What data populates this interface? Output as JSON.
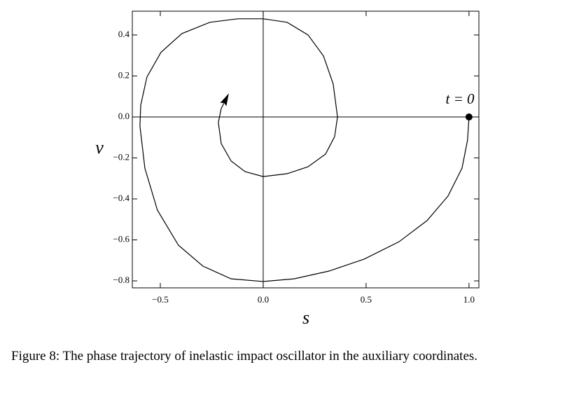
{
  "chart_data": {
    "type": "line",
    "x": [
      1.0,
      0.993,
      0.966,
      0.898,
      0.796,
      0.66,
      0.49,
      0.32,
      0.15,
      0.0,
      -0.156,
      -0.293,
      -0.412,
      -0.514,
      -0.575,
      -0.599,
      -0.595,
      -0.565,
      -0.497,
      -0.395,
      -0.259,
      -0.122,
      0.0,
      0.116,
      0.218,
      0.293,
      0.34,
      0.361,
      0.347,
      0.303,
      0.218,
      0.116,
      0.0,
      -0.088,
      -0.156,
      -0.204,
      -0.218,
      -0.204,
      -0.173
    ],
    "values": [
      0,
      -0.113,
      -0.25,
      -0.386,
      -0.506,
      -0.609,
      -0.694,
      -0.752,
      -0.79,
      -0.803,
      -0.79,
      -0.728,
      -0.626,
      -0.455,
      -0.25,
      -0.044,
      0.058,
      0.195,
      0.315,
      0.407,
      0.462,
      0.479,
      0.479,
      0.462,
      0.4,
      0.297,
      0.161,
      0,
      -0.096,
      -0.181,
      -0.243,
      -0.277,
      -0.291,
      -0.267,
      -0.215,
      -0.13,
      -0.027,
      0.041,
      0.103
    ],
    "color": "#000000",
    "xlim": [
      -0.636,
      1.048
    ],
    "ylim": [
      -0.834,
      0.516
    ],
    "xticks": [
      {
        "value": -0.5,
        "label": "−0.5"
      },
      {
        "value": 0,
        "label": "0.0"
      },
      0.5,
      {
        "value": 1,
        "label": "1.0"
      }
    ],
    "yticks": [
      0.4,
      0.2,
      {
        "value": 0,
        "label": "0.0"
      },
      {
        "value": -0.2,
        "label": "−0.2"
      },
      {
        "value": -0.4,
        "label": "−0.4"
      },
      {
        "value": -0.6,
        "label": "−0.6"
      },
      {
        "value": -0.8,
        "label": "−0.8"
      }
    ],
    "xlabel": "s",
    "ylabel": "v",
    "annotation": "t = 0",
    "zero_axes": true,
    "caption": "Figure 8: The phase trajectory of inelastic impact oscillator in the auxiliary coordinates."
  }
}
